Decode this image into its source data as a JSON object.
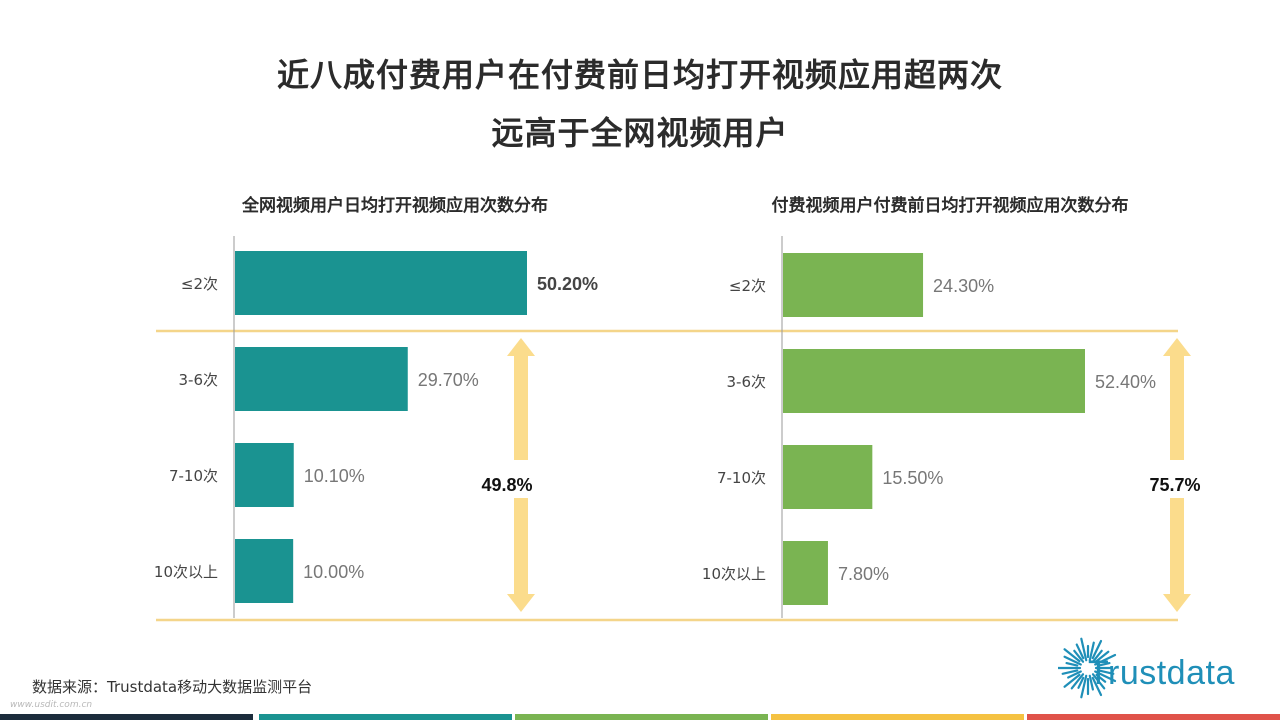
{
  "title_line1": "近八成付费用户在付费前日均打开视频应用超两次",
  "title_line2": "远高于全网视频用户",
  "source": "数据来源：Trustdata移动大数据监测平台",
  "watermark": "www.usdit.com.cn",
  "logo_text": "Trustdata",
  "colors": {
    "left_bar": "#1a9391",
    "right_bar": "#7ab452",
    "arrow": "#fbdc8c",
    "dashed_line": "#f4d58a",
    "bottom_bar": [
      "#1c2c3c",
      "#1a9391",
      "#7ab452",
      "#f5c242",
      "#e0534a"
    ]
  },
  "chart_data": [
    {
      "type": "bar",
      "orientation": "horizontal",
      "title": "全网视频用户日均打开视频应用次数分布",
      "categories": [
        "≤2次",
        "3-6次",
        "7-10次",
        "10次以上"
      ],
      "values": [
        50.2,
        29.7,
        10.1,
        10.0
      ],
      "value_labels": [
        "50.20%",
        "29.70%",
        "10.10%",
        "10.00%"
      ],
      "annotation": "49.8%",
      "xlim": [
        0,
        50.2
      ],
      "grid": false
    },
    {
      "type": "bar",
      "orientation": "horizontal",
      "title": "付费视频用户付费前日均打开视频应用次数分布",
      "categories": [
        "≤2次",
        "3-6次",
        "7-10次",
        "10次以上"
      ],
      "values": [
        24.3,
        52.4,
        15.5,
        7.8
      ],
      "value_labels": [
        "24.30%",
        "52.40%",
        "15.50%",
        "7.80%"
      ],
      "annotation": "75.7%",
      "xlim": [
        0,
        52.4
      ],
      "grid": false
    }
  ]
}
